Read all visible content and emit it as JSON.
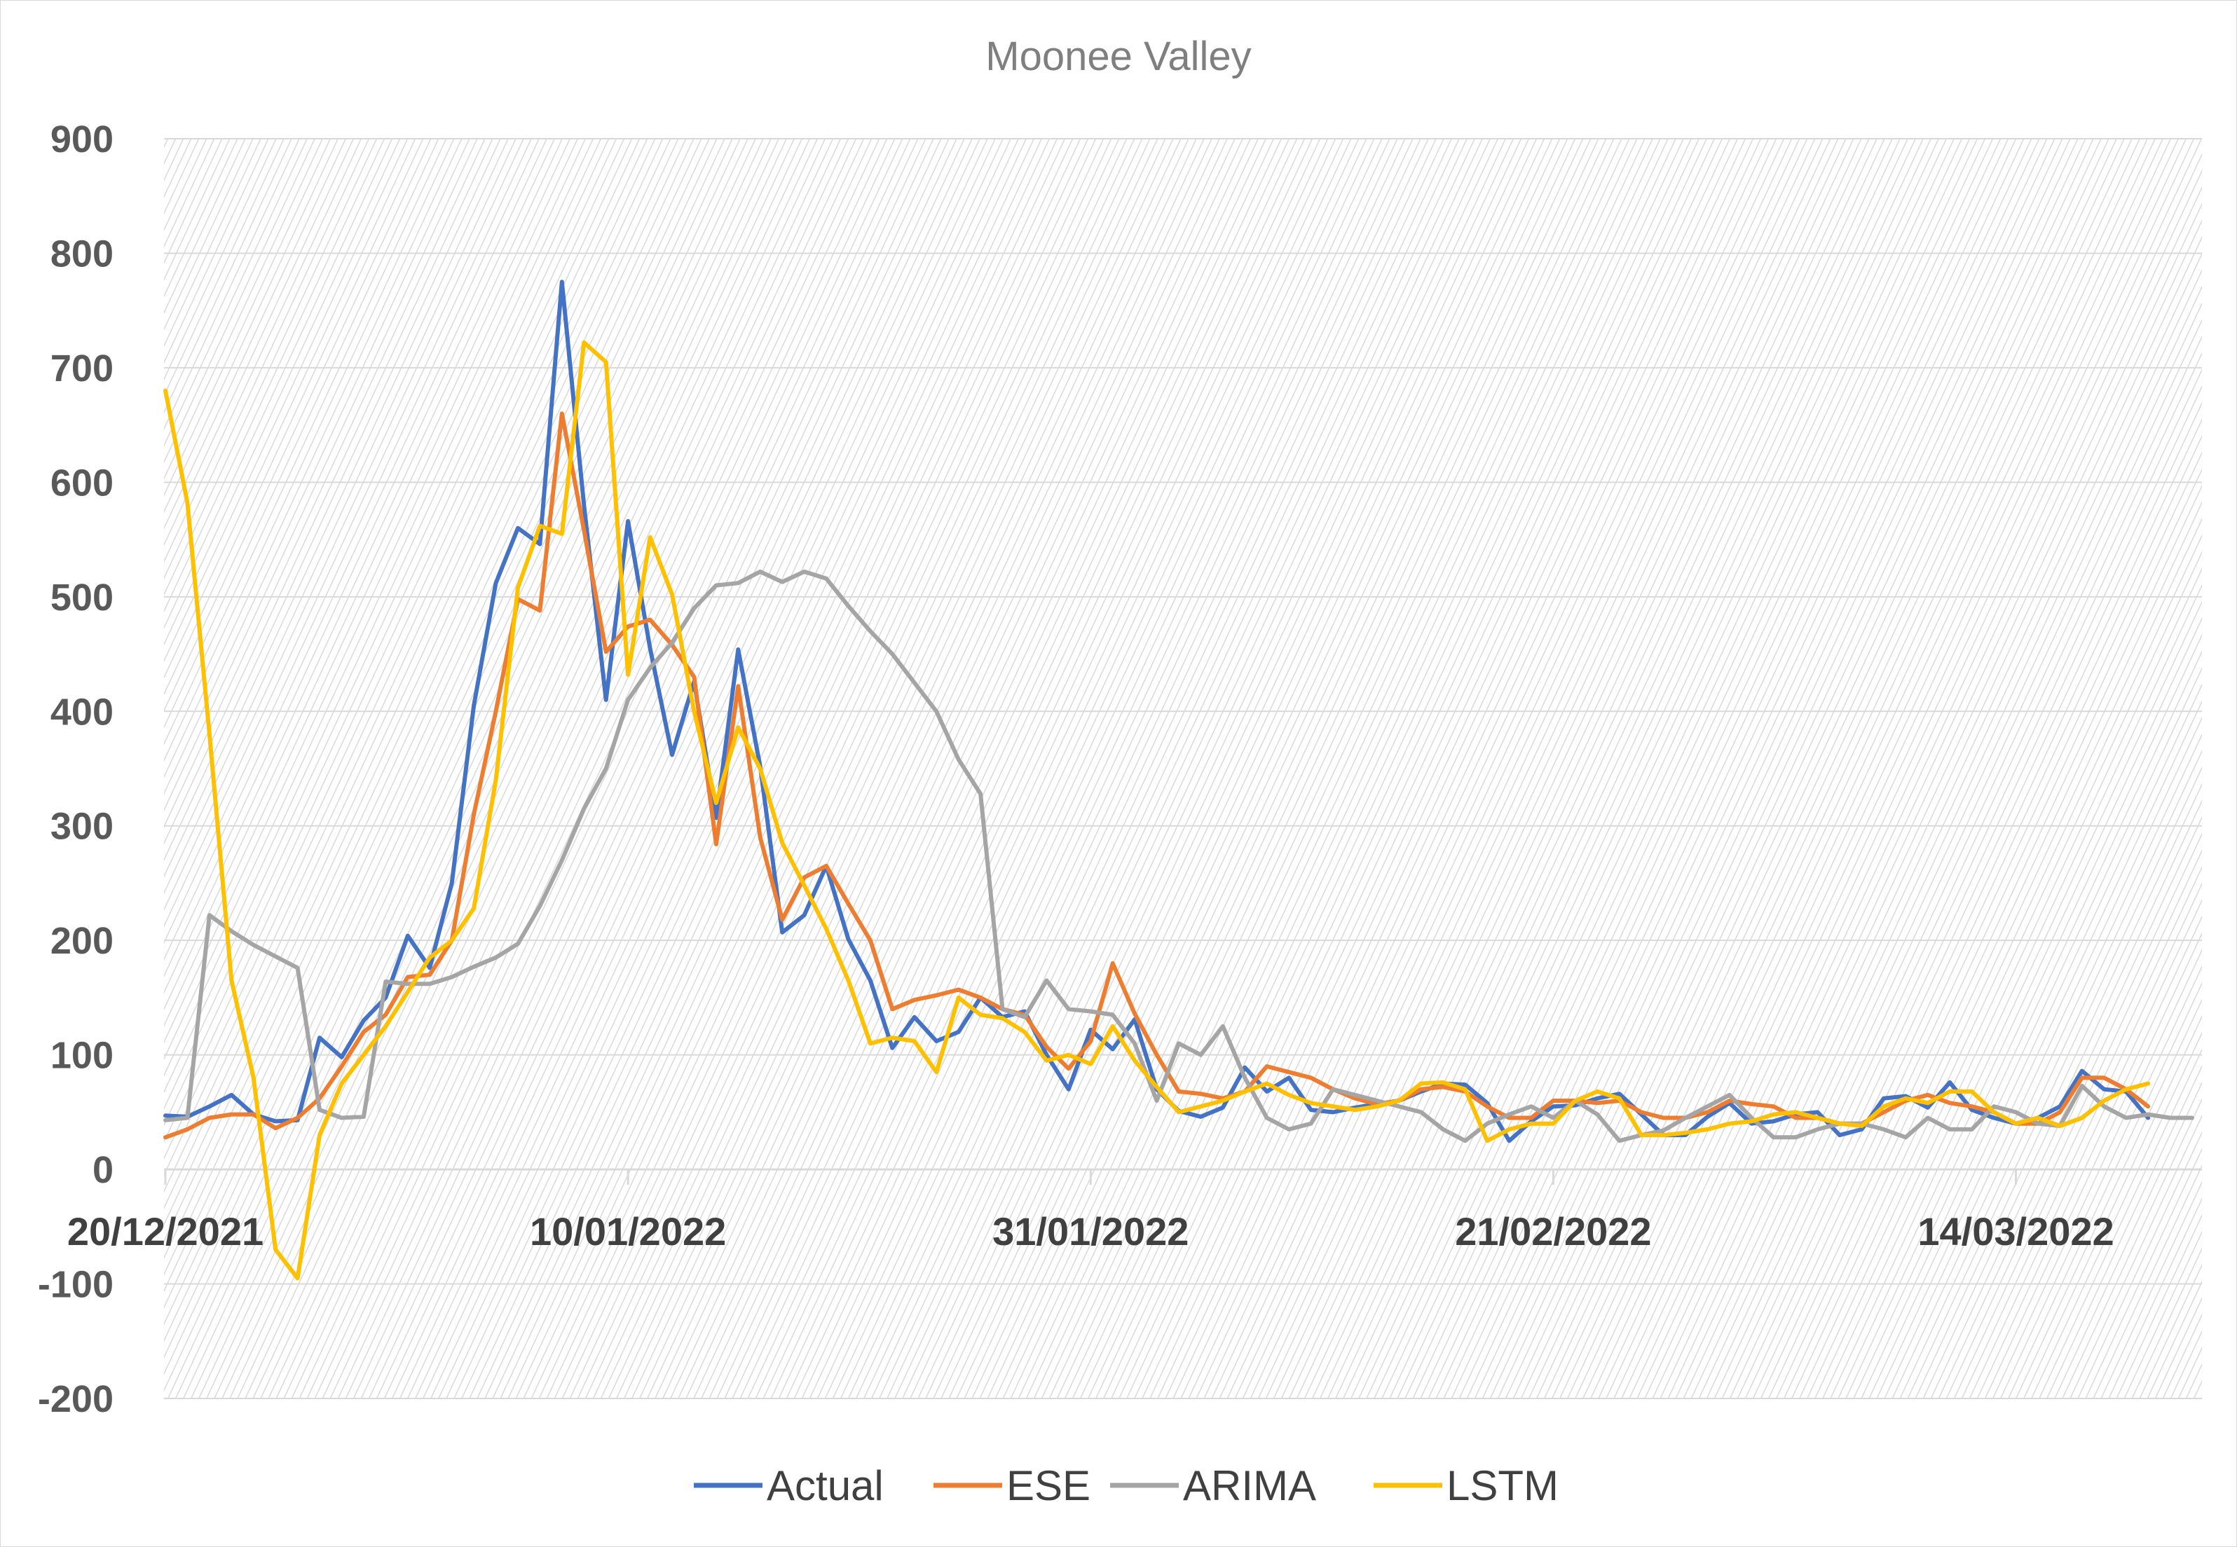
{
  "chart_data": {
    "type": "line",
    "title": "Moonee Valley",
    "xlabel": "",
    "ylabel": "",
    "ylim": [
      -200,
      900
    ],
    "yticks": [
      -200,
      -100,
      0,
      100,
      200,
      300,
      400,
      500,
      600,
      700,
      800,
      900
    ],
    "x_start": "20/12/2021",
    "x_tick_labels": [
      "20/12/2021",
      "10/01/2022",
      "31/01/2022",
      "21/02/2022",
      "14/03/2022"
    ],
    "grid": true,
    "legend_position": "bottom",
    "series": [
      {
        "name": "Actual",
        "color": "#4472C4",
        "values": [
          47,
          46,
          55,
          65,
          48,
          42,
          43,
          115,
          98,
          130,
          150,
          204,
          176,
          250,
          405,
          512,
          560,
          546,
          775,
          580,
          410,
          566,
          455,
          362,
          426,
          307,
          454,
          352,
          207,
          222,
          265,
          201,
          165,
          106,
          133,
          112,
          120,
          150,
          133,
          138,
          100,
          70,
          122,
          105,
          131,
          70,
          51,
          46,
          54,
          89,
          68,
          80,
          52,
          50,
          54,
          57,
          60,
          68,
          75,
          74,
          58,
          25,
          42,
          55,
          56,
          62,
          66,
          48,
          30,
          30,
          46,
          58,
          40,
          42,
          48,
          50,
          30,
          35,
          62,
          64,
          54,
          76,
          52,
          45,
          40,
          45,
          55,
          86,
          70,
          68,
          45
        ],
        "_x_step_days": 1
      },
      {
        "name": "ESE",
        "color": "#ED7D31",
        "values": [
          28,
          35,
          45,
          48,
          48,
          36,
          45,
          62,
          90,
          120,
          135,
          168,
          170,
          200,
          310,
          400,
          498,
          488,
          660,
          558,
          452,
          474,
          480,
          458,
          430,
          284,
          422,
          290,
          218,
          255,
          265,
          232,
          200,
          140,
          148,
          152,
          157,
          150,
          140,
          135,
          107,
          88,
          112,
          180,
          136,
          100,
          68,
          66,
          62,
          68,
          90,
          85,
          80,
          70,
          62,
          57,
          60,
          70,
          72,
          68,
          55,
          45,
          45,
          60,
          60,
          58,
          60,
          50,
          45,
          45,
          50,
          60,
          57,
          55,
          45,
          45,
          40,
          40,
          50,
          60,
          65,
          58,
          55,
          50,
          40,
          40,
          50,
          80,
          80,
          70,
          55
        ]
      },
      {
        "name": "ARIMA",
        "color": "#A5A5A5",
        "values": [
          43,
          45,
          222,
          208,
          196,
          186,
          176,
          52,
          45,
          46,
          164,
          162,
          162,
          168,
          177,
          185,
          197,
          230,
          270,
          315,
          350,
          410,
          438,
          460,
          490,
          510,
          512,
          522,
          513,
          522,
          516,
          492,
          470,
          450,
          425,
          400,
          358,
          328,
          140,
          133,
          165,
          140,
          138,
          135,
          110,
          60,
          110,
          100,
          125,
          80,
          45,
          35,
          40,
          70,
          65,
          60,
          55,
          50,
          35,
          25,
          40,
          48,
          55,
          45,
          60,
          48,
          25,
          30,
          34,
          45,
          55,
          65,
          45,
          28,
          28,
          35,
          40,
          40,
          35,
          28,
          45,
          35,
          35,
          55,
          50,
          40,
          38,
          73,
          55,
          45,
          48,
          45,
          45
        ]
      },
      {
        "name": "LSTM",
        "color": "#FFC000",
        "values": [
          680,
          582,
          380,
          165,
          80,
          -70,
          -95,
          30,
          75,
          100,
          125,
          155,
          185,
          200,
          228,
          340,
          508,
          562,
          555,
          722,
          705,
          432,
          552,
          502,
          400,
          320,
          386,
          350,
          285,
          248,
          210,
          165,
          110,
          115,
          112,
          85,
          150,
          135,
          132,
          120,
          95,
          100,
          92,
          125,
          95,
          72,
          50,
          55,
          60,
          68,
          75,
          65,
          58,
          55,
          52,
          55,
          60,
          75,
          76,
          70,
          25,
          35,
          40,
          40,
          60,
          68,
          62,
          30,
          30,
          32,
          35,
          40,
          42,
          48,
          50,
          45,
          40,
          38,
          55,
          62,
          58,
          68,
          68,
          50,
          40,
          45,
          38,
          45,
          60,
          70,
          75
        ]
      }
    ]
  }
}
